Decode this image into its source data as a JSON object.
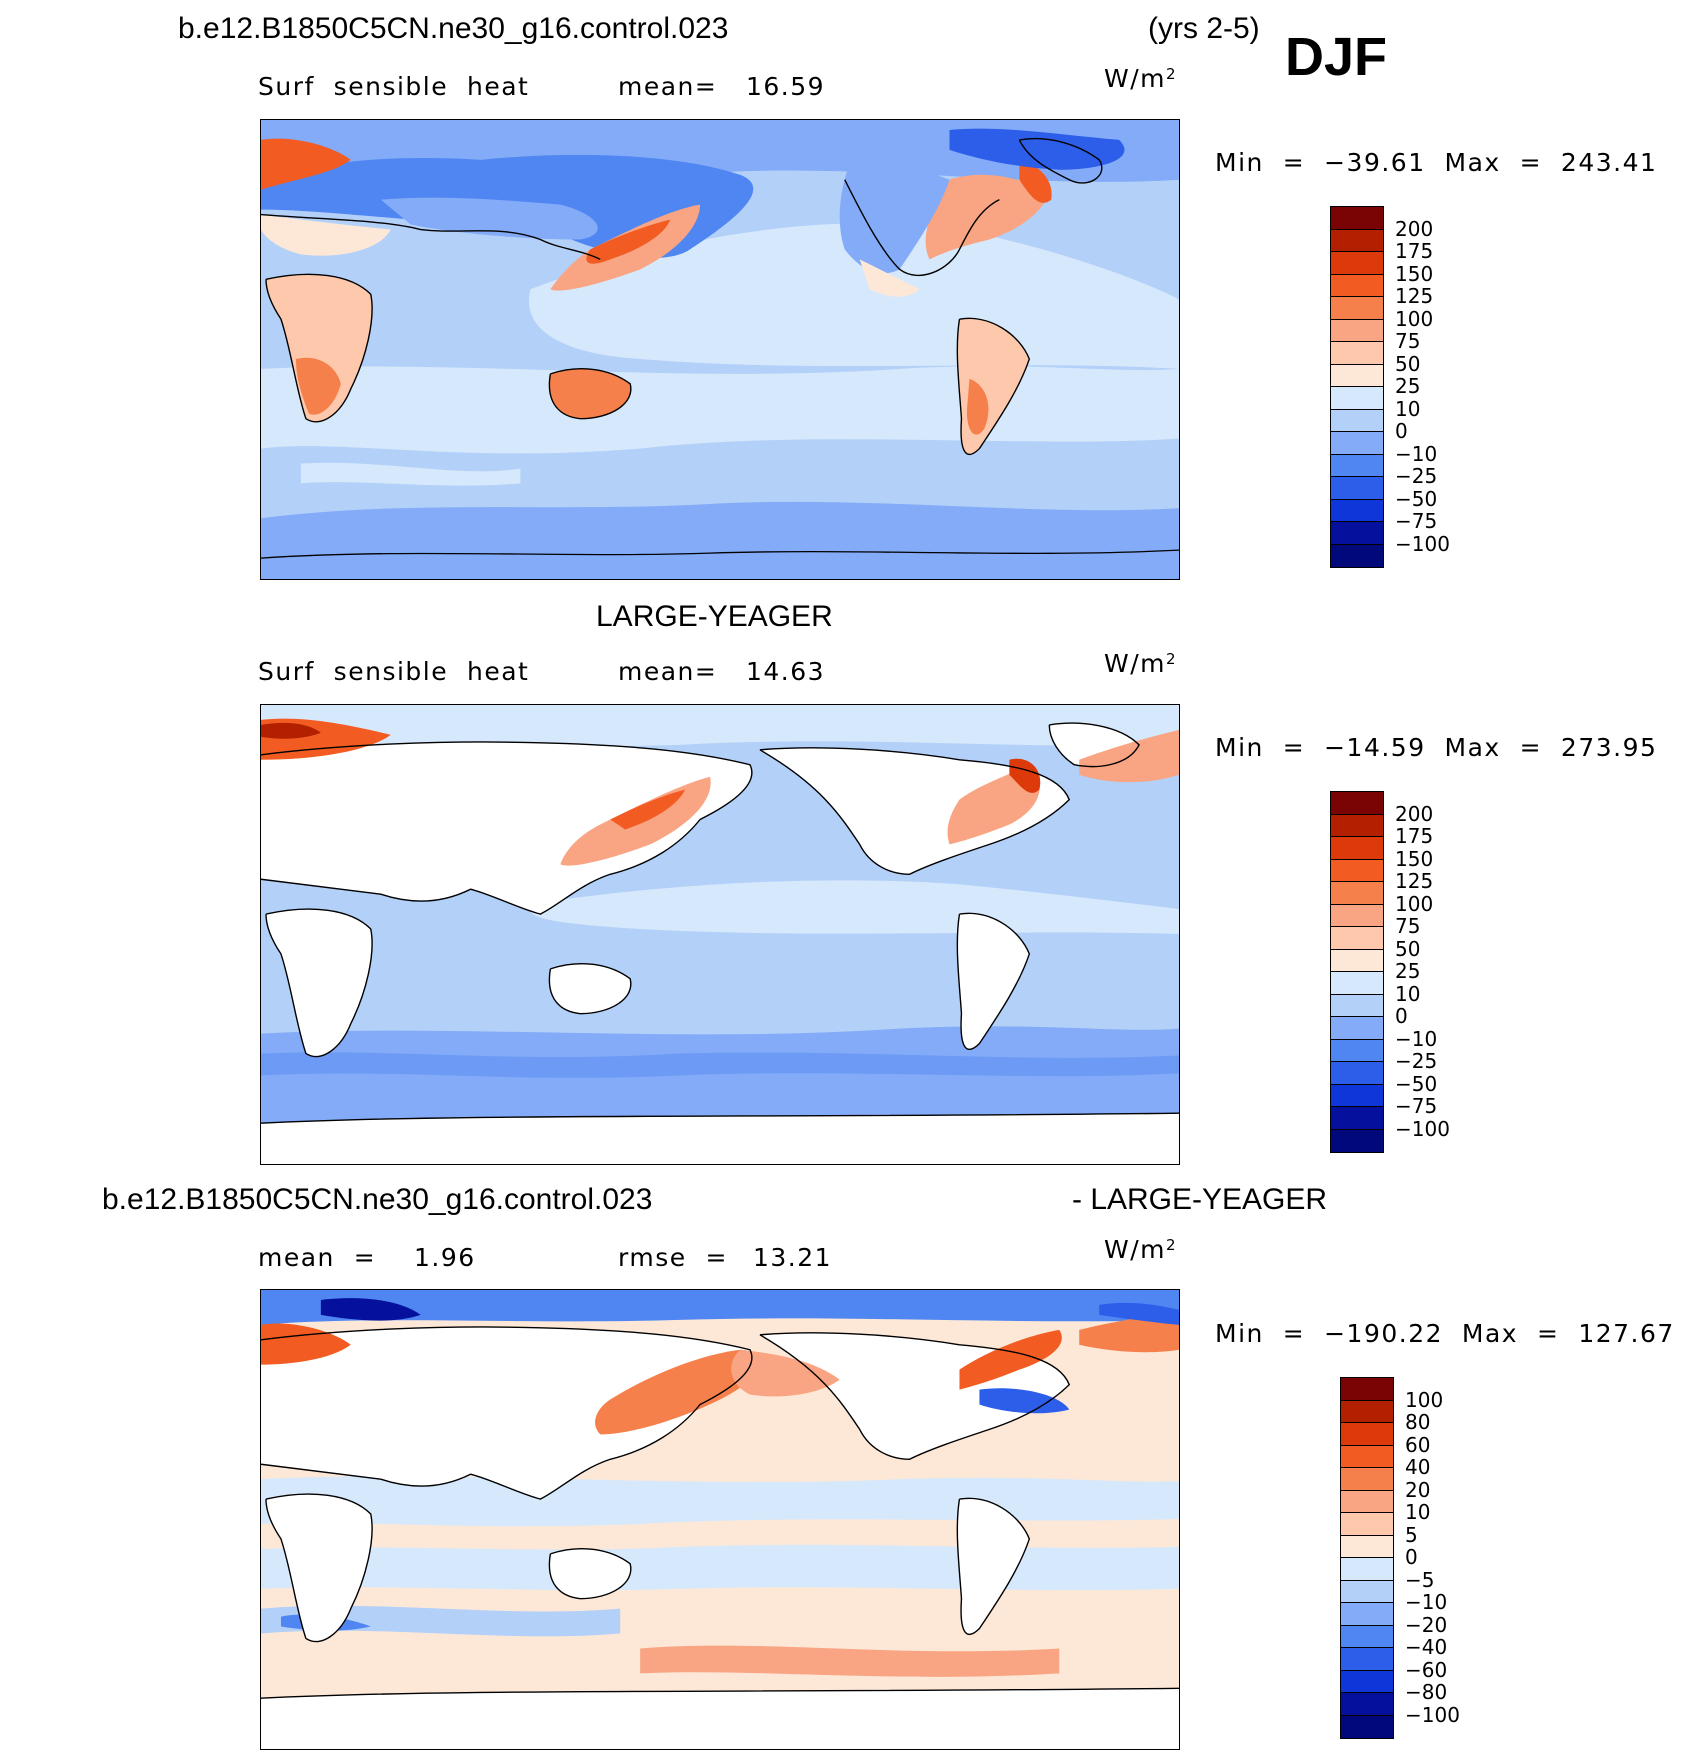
{
  "header": {
    "case_a": "b.e12.B1850C5CN.ne30_g16.control.023",
    "years": "(yrs 2-5)",
    "season": "DJF",
    "case_b": "LARGE-YEAGER",
    "diff_left": "b.e12.B1850C5CN.ne30_g16.control.023",
    "diff_right": "- LARGE-YEAGER"
  },
  "panels": [
    {
      "variable": "Surf  sensible  heat",
      "stat_label": "mean=",
      "stat_value": "16.59",
      "units": "W/m",
      "units_exp": "2",
      "minmax": "Min  =  −39.61  Max  =  243.41",
      "colorbar": {
        "labels": [
          "200",
          "175",
          "150",
          "125",
          "100",
          "75",
          "50",
          "25",
          "10",
          "0",
          "−10",
          "−25",
          "−50",
          "−75",
          "−100"
        ],
        "colors": [
          "#7a0403",
          "#b32000",
          "#dd3a0b",
          "#f25c23",
          "#f6804b",
          "#f9a482",
          "#fdc8ac",
          "#fde8d8",
          "#d6e8fb",
          "#b3d0f8",
          "#83abf7",
          "#4f86f1",
          "#2c5ee9",
          "#0e36d8",
          "#05119c",
          "#00087a"
        ]
      }
    },
    {
      "variable": "Surf  sensible  heat",
      "stat_label": "mean=",
      "stat_value": "14.63",
      "units": "W/m",
      "units_exp": "2",
      "minmax": "Min  =  −14.59  Max  =  273.95",
      "colorbar": {
        "labels": [
          "200",
          "175",
          "150",
          "125",
          "100",
          "75",
          "50",
          "25",
          "10",
          "0",
          "−10",
          "−25",
          "−50",
          "−75",
          "−100"
        ],
        "colors": [
          "#7a0403",
          "#b32000",
          "#dd3a0b",
          "#f25c23",
          "#f6804b",
          "#f9a482",
          "#fdc8ac",
          "#fde8d8",
          "#d6e8fb",
          "#b3d0f8",
          "#83abf7",
          "#4f86f1",
          "#2c5ee9",
          "#0e36d8",
          "#05119c",
          "#00087a"
        ]
      }
    },
    {
      "mean_label": "mean  =",
      "mean_value": "1.96",
      "rmse_label": "rmse  =",
      "rmse_value": "13.21",
      "units": "W/m",
      "units_exp": "2",
      "minmax": "Min  =  −190.22  Max  =  127.67",
      "colorbar": {
        "labels": [
          "100",
          "80",
          "60",
          "40",
          "20",
          "10",
          "5",
          "0",
          "−5",
          "−10",
          "−20",
          "−40",
          "−60",
          "−80",
          "−100"
        ],
        "colors": [
          "#7a0403",
          "#b32000",
          "#dd3a0b",
          "#f25c23",
          "#f6804b",
          "#f9a482",
          "#fdc8ac",
          "#fde8d8",
          "#d6e8fb",
          "#b3d0f8",
          "#83abf7",
          "#4f86f1",
          "#2c5ee9",
          "#0e36d8",
          "#05119c",
          "#00087a"
        ]
      }
    }
  ],
  "colors": {
    "ocean_cool_a": "#83abf7",
    "ocean_light": "#d6e8fb",
    "ocean_mid": "#b3d0f8",
    "warm_light": "#fde8d8",
    "warm_mid": "#f9a482",
    "warm_strong": "#f25c23",
    "cool_strong": "#2c5ee9",
    "land": "#ffffff"
  }
}
